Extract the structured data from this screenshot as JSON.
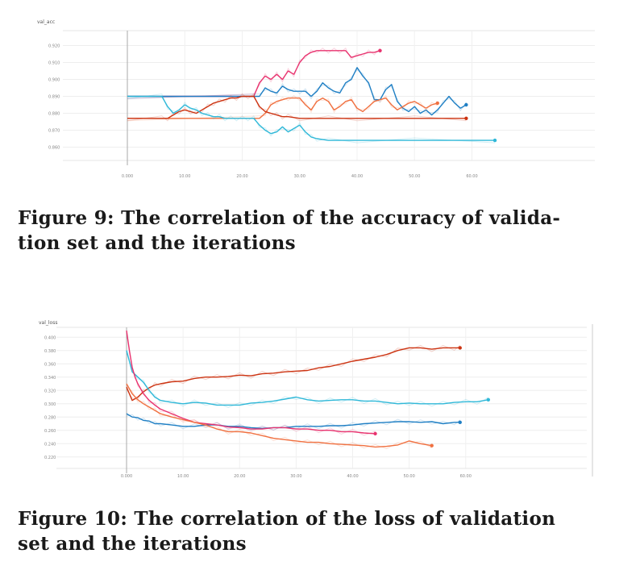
{
  "figures": [
    {
      "caption": "Figure 9: The correlation of the accuracy of validation set and the iterations",
      "caption_line1": "Figure 9: The correlation of the accuracy of valida-",
      "caption_line2": "tion set and the iterations"
    },
    {
      "caption": "Figure 10: The correlation of the loss of validation set and the iterations",
      "caption_line1": "Figure 10: The correlation of the loss of validation",
      "caption_line2": "set and the iterations"
    }
  ],
  "chart_data": [
    {
      "type": "line",
      "ylabel": "val_acc",
      "xlim": [
        0,
        80
      ],
      "ylim": [
        0.855,
        0.925
      ],
      "yticks": [
        0.86,
        0.87,
        0.88,
        0.89,
        0.9,
        0.91,
        0.92
      ],
      "ytick_labels": [
        "0.860",
        "0.870",
        "0.880",
        "0.890",
        "0.900",
        "0.910",
        "0.920"
      ],
      "xticks": [
        0,
        10,
        20,
        30,
        40,
        50,
        60
      ],
      "xtick_labels": [
        "0.000",
        "10.00",
        "20.00",
        "30.00",
        "40.00",
        "50.00",
        "60.00"
      ],
      "grid": true,
      "series": [
        {
          "color": "#e8336f",
          "x": [
            0,
            22,
            23,
            24,
            25,
            26,
            27,
            28,
            29,
            30,
            31,
            32,
            33,
            34,
            35,
            36,
            37,
            38,
            39,
            40,
            41,
            42,
            43,
            44
          ],
          "y": [
            0.89,
            0.89,
            0.898,
            0.902,
            0.9,
            0.903,
            0.9,
            0.905,
            0.903,
            0.91,
            0.914,
            0.916,
            0.917,
            0.917,
            0.917,
            0.917,
            0.917,
            0.917,
            0.913,
            0.914,
            0.915,
            0.916,
            0.916,
            0.917
          ]
        },
        {
          "color": "#1f7fc4",
          "x": [
            0,
            23,
            24,
            25,
            26,
            27,
            28,
            29,
            30,
            31,
            32,
            33,
            34,
            35,
            36,
            37,
            38,
            39,
            40,
            41,
            42,
            43,
            44,
            45,
            46,
            47,
            48,
            49,
            50,
            51,
            52,
            53,
            54,
            55,
            56,
            57,
            58,
            59
          ],
          "y": [
            0.89,
            0.89,
            0.895,
            0.893,
            0.892,
            0.896,
            0.894,
            0.893,
            0.893,
            0.893,
            0.89,
            0.893,
            0.898,
            0.895,
            0.893,
            0.892,
            0.898,
            0.9,
            0.907,
            0.902,
            0.898,
            0.888,
            0.888,
            0.894,
            0.897,
            0.887,
            0.883,
            0.881,
            0.884,
            0.88,
            0.882,
            0.879,
            0.882,
            0.886,
            0.89,
            0.886,
            0.883,
            0.885
          ]
        },
        {
          "color": "#f07040",
          "x": [
            0,
            23,
            24,
            25,
            26,
            27,
            28,
            29,
            30,
            31,
            32,
            33,
            34,
            35,
            36,
            37,
            38,
            39,
            40,
            41,
            42,
            43,
            44,
            45,
            46,
            47,
            48,
            49,
            50,
            51,
            52,
            53,
            54
          ],
          "y": [
            0.877,
            0.877,
            0.88,
            0.885,
            0.887,
            0.888,
            0.889,
            0.889,
            0.889,
            0.885,
            0.882,
            0.887,
            0.889,
            0.887,
            0.882,
            0.884,
            0.887,
            0.888,
            0.883,
            0.881,
            0.884,
            0.887,
            0.888,
            0.889,
            0.885,
            0.882,
            0.884,
            0.886,
            0.887,
            0.885,
            0.883,
            0.885,
            0.886
          ]
        },
        {
          "color": "#cc3311",
          "x": [
            0,
            6,
            7,
            8,
            9,
            10,
            11,
            12,
            13,
            14,
            15,
            16,
            17,
            18,
            19,
            20,
            21,
            22,
            23,
            24,
            25,
            26,
            27,
            28,
            30,
            35,
            40,
            50,
            59
          ],
          "y": [
            0.877,
            0.877,
            0.877,
            0.879,
            0.881,
            0.882,
            0.881,
            0.88,
            0.882,
            0.884,
            0.886,
            0.887,
            0.888,
            0.889,
            0.889,
            0.89,
            0.89,
            0.89,
            0.884,
            0.881,
            0.88,
            0.879,
            0.878,
            0.878,
            0.877,
            0.877,
            0.877,
            0.877,
            0.877
          ]
        },
        {
          "color": "#2fb8d8",
          "x": [
            0,
            6,
            7,
            8,
            9,
            10,
            11,
            12,
            13,
            14,
            15,
            16,
            17,
            18,
            19,
            20,
            21,
            22,
            23,
            24,
            25,
            26,
            27,
            28,
            29,
            30,
            31,
            32,
            33,
            35,
            40,
            50,
            64
          ],
          "y": [
            0.89,
            0.89,
            0.884,
            0.88,
            0.882,
            0.885,
            0.883,
            0.882,
            0.88,
            0.879,
            0.878,
            0.878,
            0.877,
            0.877,
            0.877,
            0.877,
            0.877,
            0.877,
            0.873,
            0.87,
            0.868,
            0.869,
            0.872,
            0.869,
            0.871,
            0.873,
            0.869,
            0.866,
            0.865,
            0.864,
            0.864,
            0.864,
            0.864
          ]
        }
      ]
    },
    {
      "type": "line",
      "ylabel": "val_loss",
      "xlim": [
        0,
        80
      ],
      "ylim": [
        0.21,
        0.41
      ],
      "yticks": [
        0.22,
        0.24,
        0.26,
        0.28,
        0.3,
        0.32,
        0.34,
        0.36,
        0.38,
        0.4
      ],
      "ytick_labels": [
        "0.220",
        "0.240",
        "0.260",
        "0.280",
        "0.300",
        "0.320",
        "0.340",
        "0.360",
        "0.380",
        "0.400"
      ],
      "xticks": [
        0,
        10,
        20,
        30,
        40,
        50,
        60
      ],
      "xtick_labels": [
        "0.000",
        "10.00",
        "20.00",
        "30.00",
        "40.00",
        "50.00",
        "60.00"
      ],
      "grid": true,
      "series": [
        {
          "color": "#cc3311",
          "x": [
            0,
            1,
            2,
            3,
            4,
            5,
            6,
            8,
            10,
            12,
            14,
            16,
            18,
            20,
            22,
            24,
            26,
            28,
            30,
            32,
            34,
            36,
            38,
            40,
            42,
            44,
            46,
            48,
            50,
            52,
            54,
            56,
            58,
            59
          ],
          "y": [
            0.325,
            0.305,
            0.31,
            0.318,
            0.324,
            0.328,
            0.33,
            0.333,
            0.334,
            0.338,
            0.34,
            0.34,
            0.341,
            0.343,
            0.342,
            0.345,
            0.346,
            0.348,
            0.349,
            0.35,
            0.354,
            0.356,
            0.36,
            0.364,
            0.367,
            0.37,
            0.374,
            0.38,
            0.384,
            0.384,
            0.382,
            0.384,
            0.384,
            0.384
          ]
        },
        {
          "color": "#2fb8d8",
          "x": [
            0,
            1,
            2,
            3,
            4,
            5,
            6,
            8,
            10,
            12,
            14,
            16,
            18,
            20,
            22,
            24,
            26,
            28,
            30,
            32,
            34,
            36,
            38,
            40,
            42,
            44,
            46,
            48,
            50,
            52,
            54,
            56,
            58,
            60,
            62,
            64
          ],
          "y": [
            0.38,
            0.348,
            0.34,
            0.332,
            0.32,
            0.31,
            0.305,
            0.302,
            0.3,
            0.302,
            0.301,
            0.298,
            0.298,
            0.298,
            0.301,
            0.302,
            0.304,
            0.307,
            0.31,
            0.306,
            0.304,
            0.305,
            0.306,
            0.306,
            0.304,
            0.304,
            0.302,
            0.3,
            0.301,
            0.3,
            0.3,
            0.3,
            0.302,
            0.303,
            0.303,
            0.306
          ]
        },
        {
          "color": "#1f7fc4",
          "x": [
            0,
            1,
            2,
            3,
            4,
            5,
            6,
            8,
            10,
            12,
            14,
            16,
            18,
            20,
            22,
            24,
            26,
            28,
            30,
            32,
            34,
            36,
            38,
            40,
            42,
            44,
            46,
            48,
            50,
            52,
            54,
            56,
            58,
            59
          ],
          "y": [
            0.285,
            0.28,
            0.279,
            0.275,
            0.274,
            0.27,
            0.27,
            0.268,
            0.266,
            0.266,
            0.268,
            0.268,
            0.266,
            0.266,
            0.264,
            0.263,
            0.264,
            0.264,
            0.266,
            0.266,
            0.266,
            0.267,
            0.267,
            0.268,
            0.27,
            0.271,
            0.272,
            0.273,
            0.273,
            0.272,
            0.273,
            0.27,
            0.272,
            0.272
          ]
        },
        {
          "color": "#e8336f",
          "x": [
            0,
            0.5,
            1,
            1.5,
            2,
            3,
            4,
            5,
            6,
            8,
            10,
            12,
            14,
            16,
            18,
            20,
            22,
            24,
            26,
            28,
            30,
            32,
            34,
            36,
            38,
            40,
            42,
            44
          ],
          "y": [
            0.41,
            0.38,
            0.355,
            0.34,
            0.33,
            0.315,
            0.305,
            0.298,
            0.292,
            0.285,
            0.278,
            0.272,
            0.27,
            0.268,
            0.265,
            0.264,
            0.262,
            0.262,
            0.264,
            0.264,
            0.262,
            0.262,
            0.26,
            0.26,
            0.258,
            0.258,
            0.256,
            0.255
          ]
        },
        {
          "color": "#f07040",
          "x": [
            0,
            1,
            2,
            3,
            4,
            5,
            6,
            8,
            10,
            12,
            14,
            16,
            18,
            20,
            22,
            24,
            26,
            28,
            30,
            32,
            34,
            36,
            38,
            40,
            42,
            44,
            46,
            48,
            50,
            52,
            54
          ],
          "y": [
            0.33,
            0.315,
            0.306,
            0.3,
            0.295,
            0.29,
            0.285,
            0.28,
            0.276,
            0.272,
            0.268,
            0.262,
            0.258,
            0.258,
            0.256,
            0.252,
            0.248,
            0.246,
            0.244,
            0.242,
            0.242,
            0.24,
            0.239,
            0.238,
            0.237,
            0.235,
            0.236,
            0.238,
            0.244,
            0.24,
            0.237
          ]
        }
      ]
    }
  ]
}
